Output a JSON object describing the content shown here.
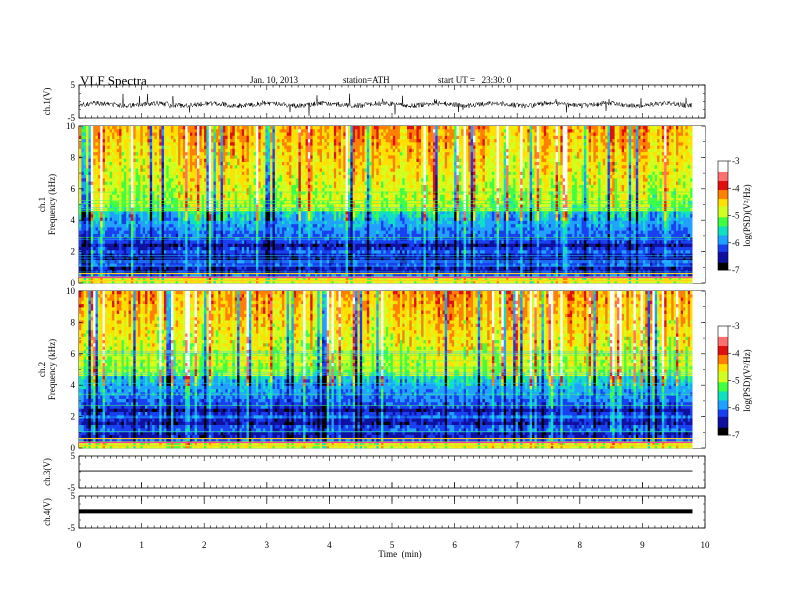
{
  "header": {
    "title": "VLF Spectra",
    "date": "Jan. 10, 2013",
    "station": "station=ATH",
    "start": "start UT =   23:30: 0"
  },
  "colors": {
    "colormap": [
      "#000000",
      "#1010a0",
      "#1840f0",
      "#20a0ff",
      "#10e0c0",
      "#40ff40",
      "#d0ff20",
      "#ffe000",
      "#ff8000",
      "#e01010",
      "#ff7070",
      "#ffffff"
    ]
  },
  "chart_data": [
    {
      "type": "line",
      "ylabel": "ch.1(V)",
      "ylim": [
        -5,
        5
      ],
      "yticks": [
        "5",
        "-5"
      ],
      "note": "time series of channel 1"
    },
    {
      "type": "heatmap",
      "ylabel": "ch.1\nFrequency (kHz)",
      "ylabel_line1": "ch.1",
      "ylabel_line2": "Frequency (kHz)",
      "ylim": [
        0,
        10
      ],
      "yticks": [
        "0",
        "2",
        "4",
        "6",
        "8",
        "10"
      ],
      "colorbar": {
        "label": "log(PSD)(V²/Hz)",
        "range": [
          -7,
          -3
        ],
        "ticks": [
          "-3",
          "-4",
          "-5",
          "-6",
          "-7"
        ]
      }
    },
    {
      "type": "heatmap",
      "ylabel_line1": "ch.2",
      "ylabel_line2": "Frequency (kHz)",
      "ylim": [
        0,
        10
      ],
      "yticks": [
        "0",
        "2",
        "4",
        "6",
        "8",
        "10"
      ],
      "colorbar": {
        "label": "log(PSD)(V²/Hz)",
        "range": [
          -7,
          -3
        ],
        "ticks": [
          "-3",
          "-4",
          "-5",
          "-6",
          "-7"
        ]
      }
    },
    {
      "type": "line",
      "ylabel": "ch.3(V)",
      "ylim": [
        -5,
        5
      ],
      "yticks": [
        "5",
        "-5"
      ]
    },
    {
      "type": "line",
      "ylabel": "ch.4(V)",
      "ylim": [
        -5,
        5
      ],
      "yticks": [
        "5",
        "-5"
      ]
    }
  ],
  "xaxis": {
    "label": "Time  (min)",
    "range": [
      0,
      10
    ],
    "ticks": [
      "0",
      "1",
      "2",
      "3",
      "4",
      "5",
      "6",
      "7",
      "8",
      "9",
      "10"
    ],
    "data_end": 9.8
  }
}
